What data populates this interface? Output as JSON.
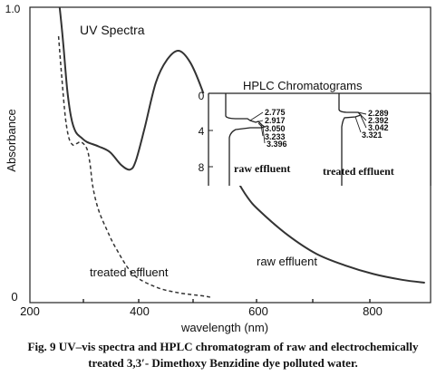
{
  "chart_data": [
    {
      "type": "line",
      "title": "UV Spectra",
      "xlabel": "wavelength (nm)",
      "ylabel": "Absorbance",
      "xlim": [
        200,
        900
      ],
      "ylim": [
        0,
        1.0
      ],
      "x_ticks": [
        "200",
        "400",
        "600",
        "800"
      ],
      "y_ticks": [
        "0",
        "1.0"
      ],
      "grid": false,
      "series": [
        {
          "name": "raw effluent",
          "style": "solid",
          "x": [
            252,
            258,
            265,
            272,
            280,
            290,
            300,
            320,
            340,
            360,
            375,
            385,
            400,
            420,
            440,
            460,
            480,
            500,
            520,
            540,
            560,
            580,
            600,
            650,
            700,
            750,
            800,
            850,
            890
          ],
          "y": [
            1.0,
            0.88,
            0.72,
            0.62,
            0.57,
            0.55,
            0.535,
            0.52,
            0.5,
            0.455,
            0.44,
            0.47,
            0.58,
            0.74,
            0.82,
            0.85,
            0.81,
            0.72,
            0.6,
            0.49,
            0.41,
            0.345,
            0.3,
            0.215,
            0.15,
            0.11,
            0.08,
            0.06,
            0.05
          ]
        },
        {
          "name": "treated effluent",
          "style": "dashed",
          "x": [
            250,
            256,
            262,
            268,
            275,
            282,
            290,
            300,
            305,
            310,
            320,
            335,
            350,
            380,
            420,
            460,
            500,
            515
          ],
          "y": [
            0.9,
            0.75,
            0.62,
            0.55,
            0.525,
            0.53,
            0.535,
            0.51,
            0.46,
            0.38,
            0.3,
            0.23,
            0.17,
            0.08,
            0.035,
            0.015,
            0.005,
            0.0
          ]
        }
      ],
      "annotations": [
        "treated effluent",
        "raw effluent"
      ]
    },
    {
      "type": "line",
      "title": "HPLC Chromatograms",
      "y_ticks": [
        "0",
        "4",
        "8"
      ],
      "ylim": [
        0,
        10
      ],
      "series": [
        {
          "name": "raw effluent",
          "peak_labels": [
            "2.775",
            "2.917",
            "3.050",
            "3.233",
            "3.396"
          ]
        },
        {
          "name": "treated effluent",
          "peak_labels": [
            "2.289",
            "2.392",
            "3.042",
            "3.321"
          ]
        }
      ]
    }
  ],
  "caption": {
    "line1": "Fig. 9 UV–vis spectra and HPLC chromatogram of raw and electrochemically",
    "line2": "treated 3,3′- Dimethoxy Benzidine dye polluted water."
  }
}
